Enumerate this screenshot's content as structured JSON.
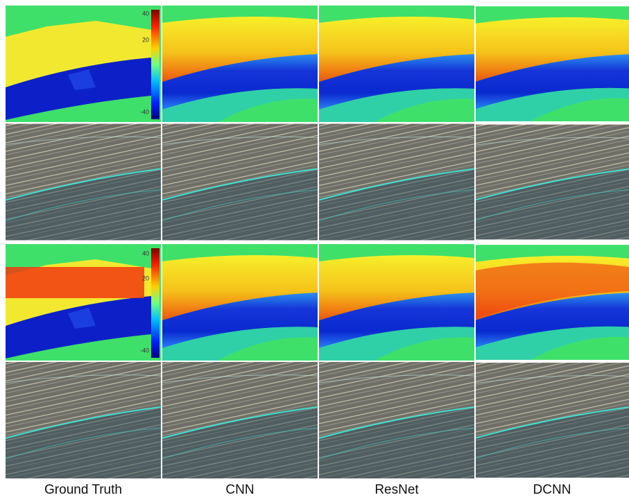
{
  "columns": [
    "Ground Truth",
    "CNN",
    "ResNet",
    "DCNN"
  ],
  "colorbars": [
    {
      "ticks": [
        "40",
        "20",
        "-40"
      ]
    },
    {
      "ticks": [
        "40",
        "20",
        "-40"
      ]
    }
  ]
}
